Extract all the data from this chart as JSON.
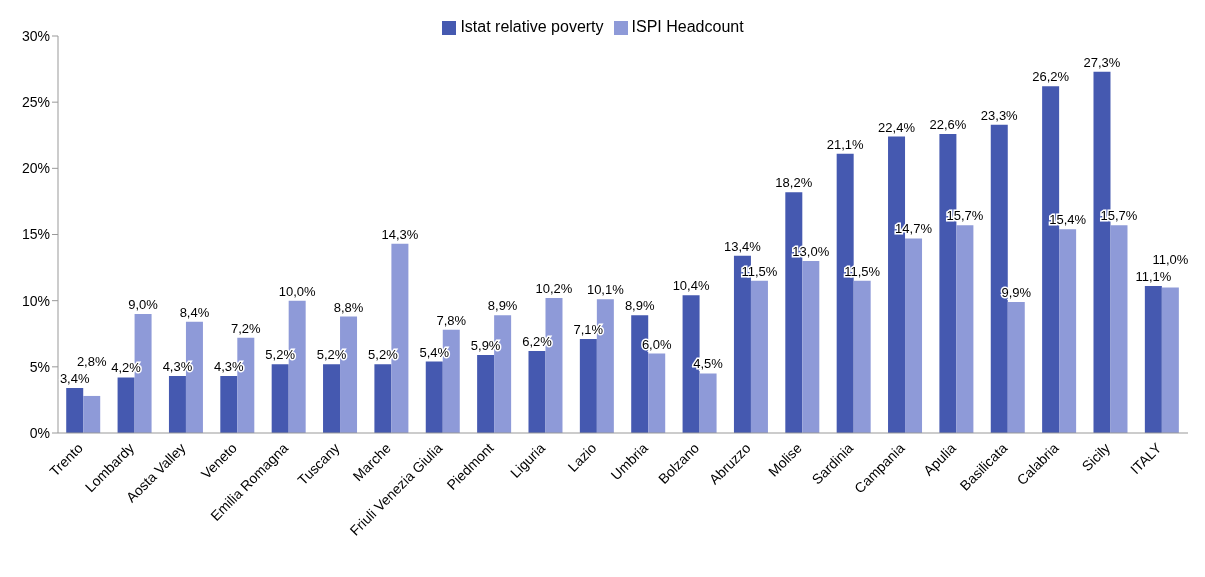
{
  "chart_data": {
    "type": "bar",
    "categories": [
      "Trento",
      "Lombardy",
      "Aosta Valley",
      "Veneto",
      "Emilia Romagna",
      "Tuscany",
      "Marche",
      "Friuli Venezia Giulia",
      "Piedmont",
      "Liguria",
      "Lazio",
      "Umbria",
      "Bolzano",
      "Abruzzo",
      "Molise",
      "Sardinia",
      "Campania",
      "Apulia",
      "Basilicata",
      "Calabria",
      "Sicily",
      "ITALY"
    ],
    "series": [
      {
        "name": "Istat relative poverty",
        "color": "#4559b0",
        "values": [
          3.4,
          4.2,
          4.3,
          4.3,
          5.2,
          5.2,
          5.2,
          5.4,
          5.9,
          6.2,
          7.1,
          8.9,
          10.4,
          13.4,
          18.2,
          21.1,
          22.4,
          22.6,
          23.3,
          26.2,
          27.3,
          11.1
        ],
        "value_labels": [
          "3,4%",
          "4,2%",
          "4,3%",
          "4,3%",
          "5,2%",
          "5,2%",
          "5,2%",
          "5,4%",
          "5,9%",
          "6,2%",
          "7,1%",
          "8,9%",
          "10,4%",
          "13,4%",
          "18,2%",
          "21,1%",
          "22,4%",
          "22,6%",
          "23,3%",
          "26,2%",
          "27,3%",
          "11,1%"
        ]
      },
      {
        "name": "ISPI Headcount",
        "color": "#8e9ad8",
        "values": [
          2.8,
          9.0,
          8.4,
          7.2,
          10.0,
          8.8,
          14.3,
          7.8,
          8.9,
          10.2,
          10.1,
          6.0,
          4.5,
          11.5,
          13.0,
          11.5,
          14.7,
          15.7,
          9.9,
          15.4,
          15.7,
          11.0
        ],
        "value_labels": [
          "2,8%",
          "9,0%",
          "8,4%",
          "7,2%",
          "10,0%",
          "8,8%",
          "14,3%",
          "7,8%",
          "8,9%",
          "10,2%",
          "10,1%",
          "6,0%",
          "4,5%",
          "11,5%",
          "13,0%",
          "11,5%",
          "14,7%",
          "15,7%",
          "9,9%",
          "15,4%",
          "15,7%",
          "11,0%"
        ]
      }
    ],
    "ylim": [
      0,
      30
    ],
    "yticks": [
      {
        "value": 0,
        "label": "0%"
      },
      {
        "value": 5,
        "label": "5%"
      },
      {
        "value": 10,
        "label": "10%"
      },
      {
        "value": 15,
        "label": "15%"
      },
      {
        "value": 20,
        "label": "20%"
      },
      {
        "value": 25,
        "label": "25%"
      },
      {
        "value": 30,
        "label": "30%"
      }
    ],
    "grid": false,
    "legend": "top"
  }
}
